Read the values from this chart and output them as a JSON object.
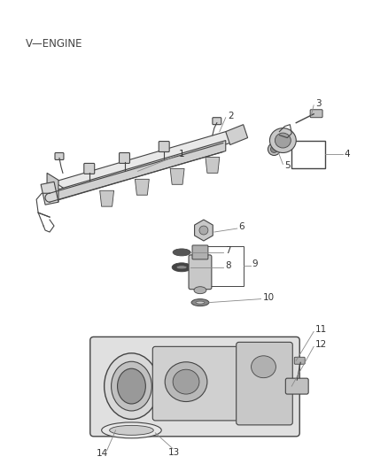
{
  "title": "V—ENGINE",
  "bg_color": "#ffffff",
  "lc": "#444444",
  "lc_light": "#888888",
  "title_fontsize": 8.5,
  "label_fontsize": 7.5,
  "figsize": [
    4.38,
    5.33
  ],
  "dpi": 100
}
